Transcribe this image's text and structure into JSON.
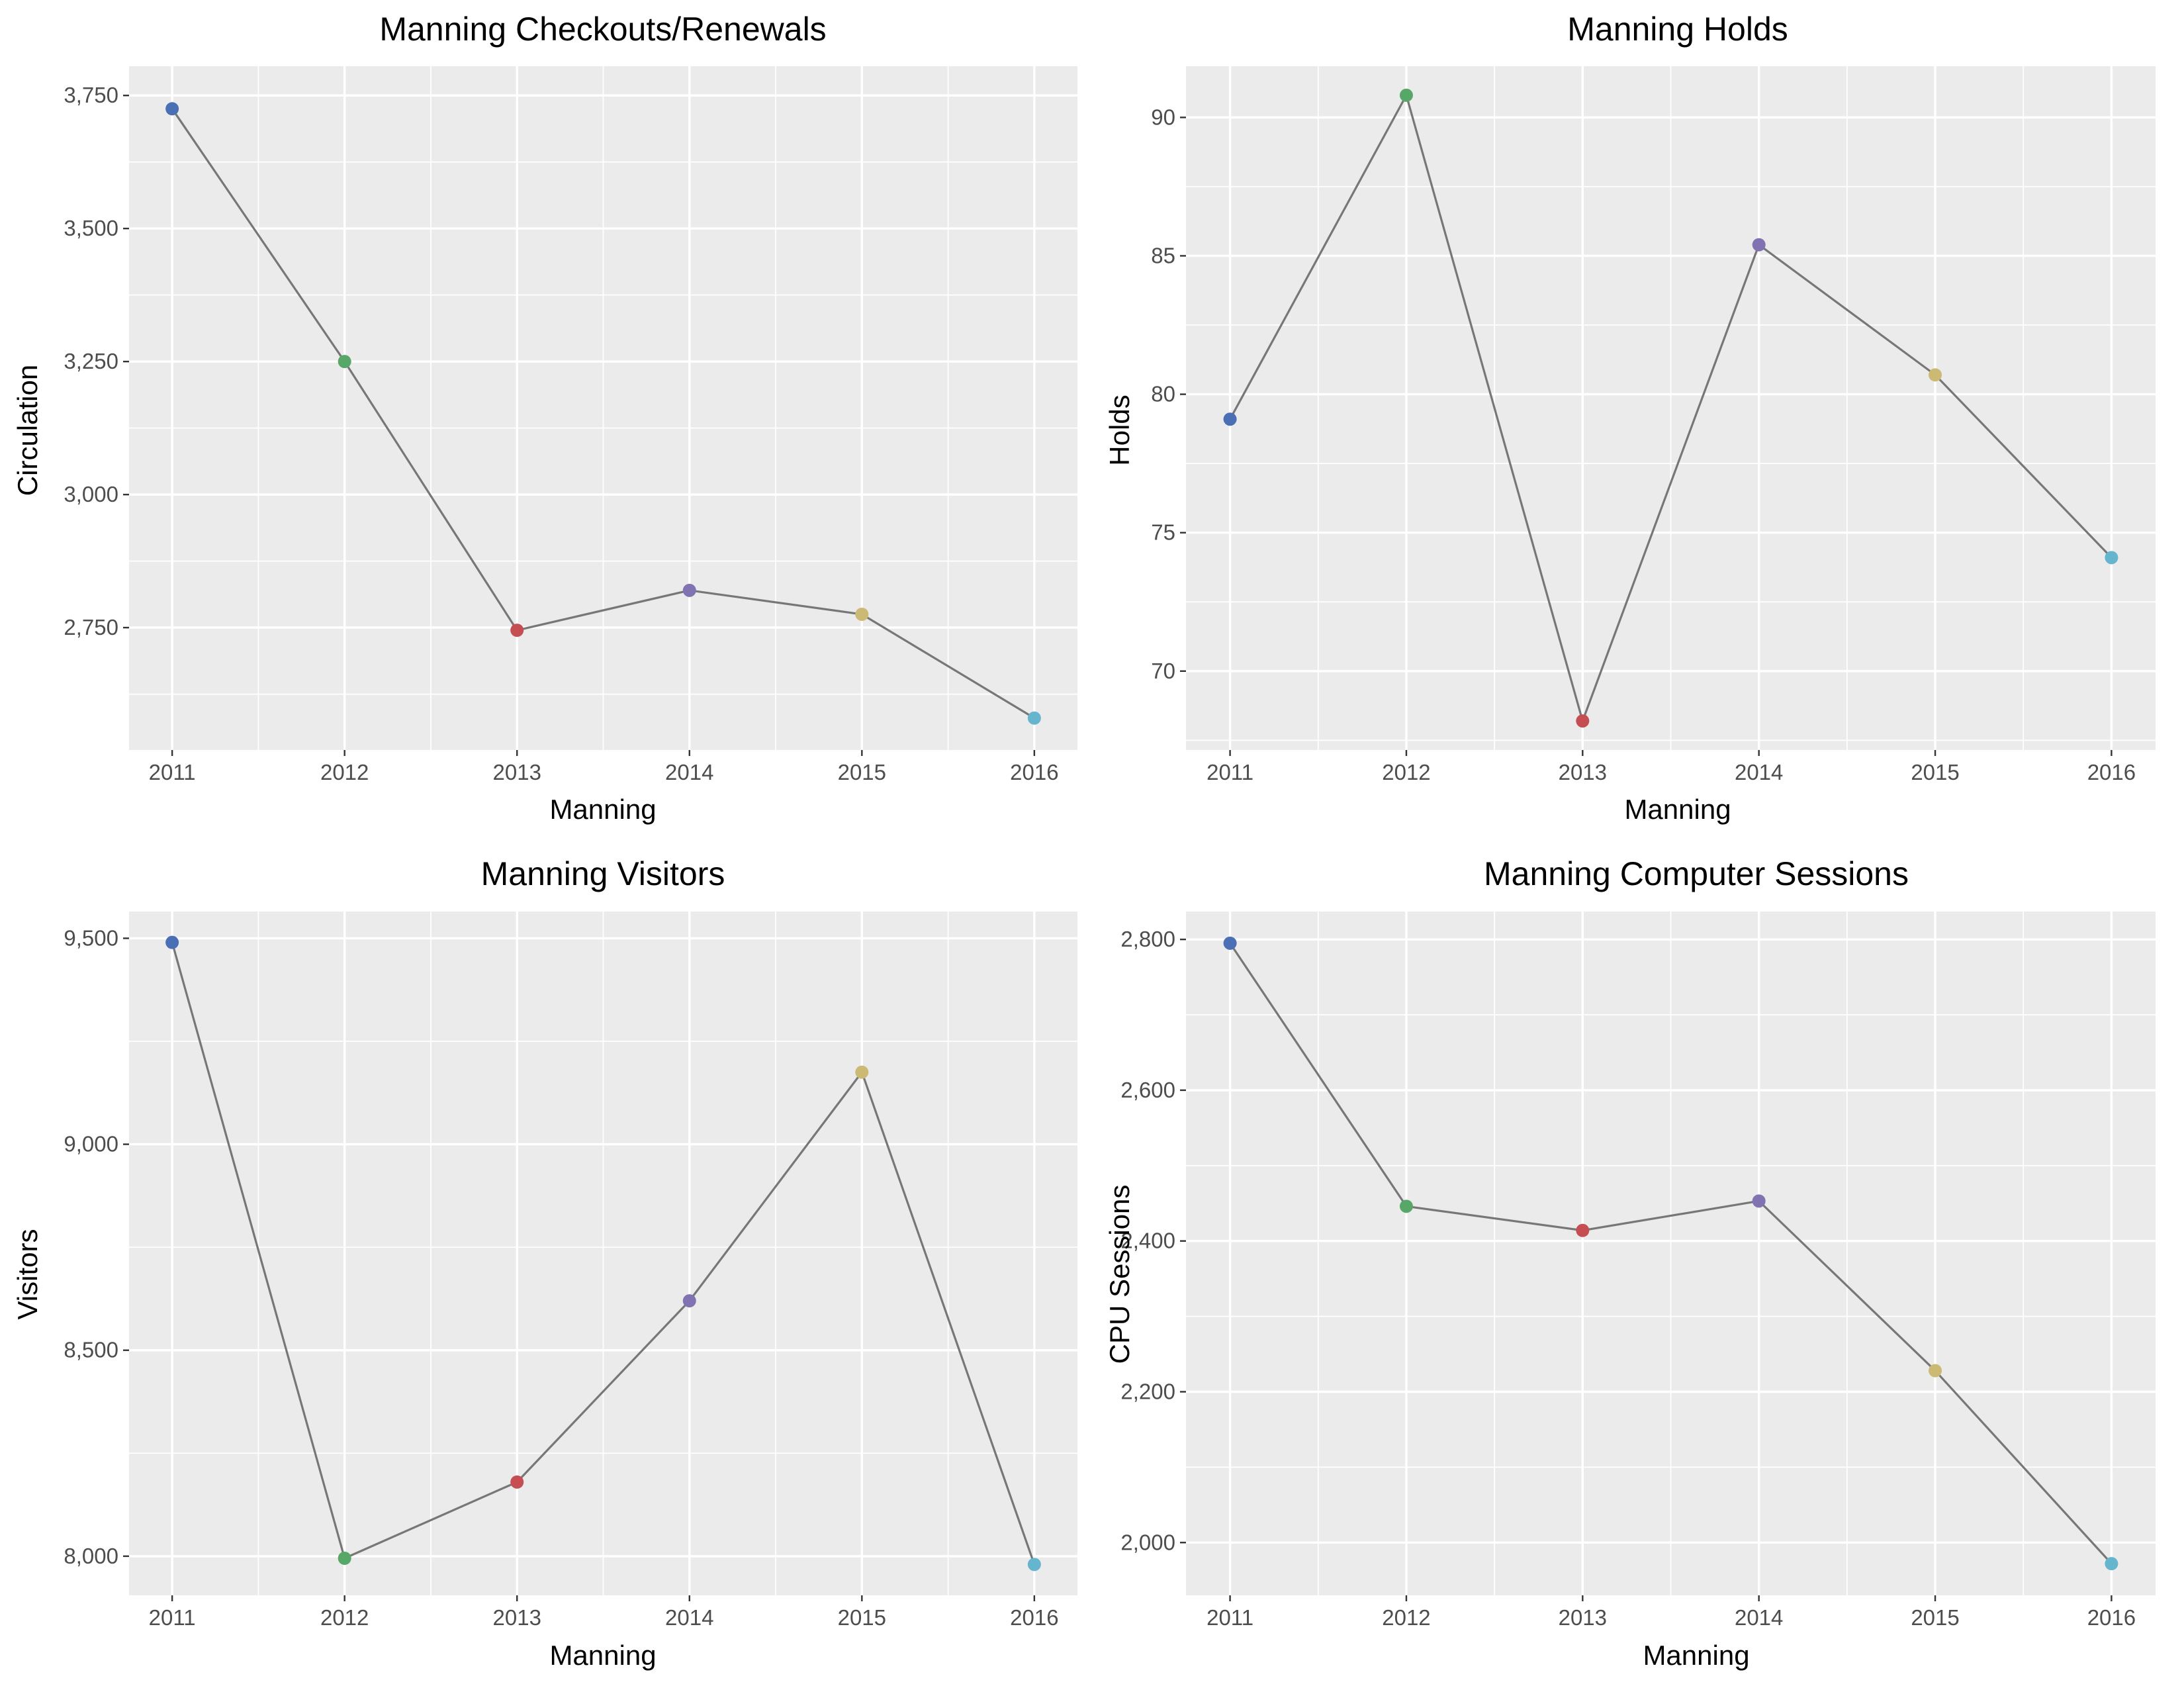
{
  "colors": {
    "2011": "#4a6fb5",
    "2012": "#56a768",
    "2013": "#c44e52",
    "2014": "#8172b2",
    "2015": "#ccb974",
    "2016": "#64b5cd",
    "line": "#777777",
    "panel": "#ebebeb"
  },
  "chart_data": [
    {
      "type": "line",
      "title": "Manning Checkouts/Renewals",
      "xlabel": "Manning",
      "ylabel": "Circulation",
      "x": [
        2011,
        2012,
        2013,
        2014,
        2015,
        2016
      ],
      "values": [
        3725,
        3250,
        2745,
        2820,
        2775,
        2580
      ],
      "ylim": [
        2520,
        3805
      ],
      "yticks": [
        2750,
        3000,
        3250,
        3500,
        3750
      ],
      "ytick_labels": [
        "2,750",
        "3,000",
        "3,250",
        "3,500",
        "3,750"
      ],
      "xticks": [
        "2011",
        "2012",
        "2013",
        "2014",
        "2015",
        "2016"
      ],
      "grid": true,
      "legend": "none"
    },
    {
      "type": "line",
      "title": "Manning Holds",
      "xlabel": "Manning",
      "ylabel": "Holds",
      "x": [
        2011,
        2012,
        2013,
        2014,
        2015,
        2016
      ],
      "values": [
        79.1,
        90.8,
        68.2,
        85.4,
        80.7,
        74.1
      ],
      "ylim": [
        67.15,
        91.85
      ],
      "yticks": [
        70,
        75,
        80,
        85,
        90
      ],
      "ytick_labels": [
        "70",
        "75",
        "80",
        "85",
        "90"
      ],
      "xticks": [
        "2011",
        "2012",
        "2013",
        "2014",
        "2015",
        "2016"
      ],
      "grid": true,
      "legend": "none"
    },
    {
      "type": "line",
      "title": "Manning Visitors",
      "xlabel": "Manning",
      "ylabel": "Visitors",
      "x": [
        2011,
        2012,
        2013,
        2014,
        2015,
        2016
      ],
      "values": [
        9490,
        7995,
        8180,
        8620,
        9175,
        7980
      ],
      "ylim": [
        7905,
        9565
      ],
      "yticks": [
        8000,
        8500,
        9000,
        9500
      ],
      "ytick_labels": [
        "8,000",
        "8,500",
        "9,000",
        "9,500"
      ],
      "xticks": [
        "2011",
        "2012",
        "2013",
        "2014",
        "2015",
        "2016"
      ],
      "grid": true,
      "legend": "none"
    },
    {
      "type": "line",
      "title": "Manning Computer Sessions",
      "xlabel": "Manning",
      "ylabel": "CPU Sessions",
      "x": [
        2011,
        2012,
        2013,
        2014,
        2015,
        2016
      ],
      "values": [
        2795,
        2446,
        2414,
        2453,
        2228,
        1972
      ],
      "ylim": [
        1930,
        2837
      ],
      "yticks": [
        2000,
        2200,
        2400,
        2600,
        2800
      ],
      "ytick_labels": [
        "2,000",
        "2,200",
        "2,400",
        "2,600",
        "2,800"
      ],
      "xticks": [
        "2011",
        "2012",
        "2013",
        "2014",
        "2015",
        "2016"
      ],
      "grid": true,
      "legend": "none"
    }
  ]
}
